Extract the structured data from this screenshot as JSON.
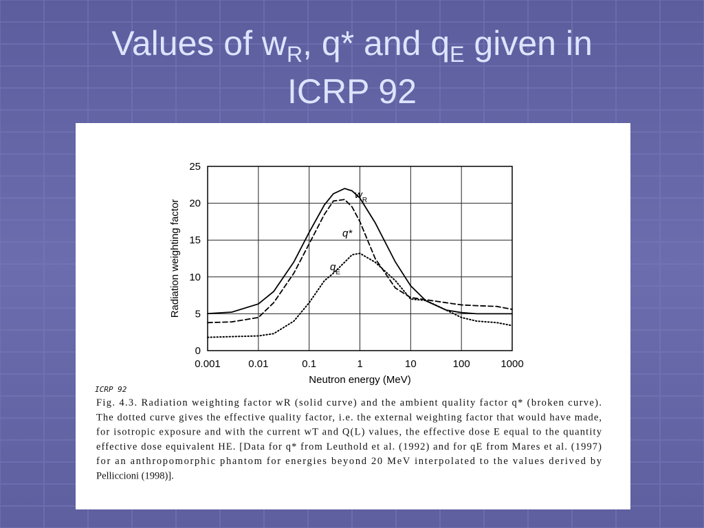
{
  "slide": {
    "title_line1": [
      "Values of w",
      "R",
      ", q* and q",
      "E",
      " given in"
    ],
    "title_line2": "ICRP 92"
  },
  "chart_data": {
    "type": "line",
    "xlabel": "Neutron energy (MeV)",
    "ylabel": "Radiation weighting factor",
    "xscale": "log",
    "grid": true,
    "xlim": [
      0.001,
      1000
    ],
    "xticks": [
      0.001,
      0.01,
      0.1,
      1,
      10,
      100,
      1000
    ],
    "ylim": [
      0,
      25
    ],
    "yticks": [
      0,
      5,
      10,
      15,
      20,
      25
    ],
    "x": [
      0.001,
      0.003,
      0.01,
      0.02,
      0.05,
      0.1,
      0.2,
      0.3,
      0.5,
      0.7,
      1,
      2,
      5,
      10,
      20,
      50,
      100,
      200,
      500,
      1000
    ],
    "series": [
      {
        "name": "w",
        "subscript": "R",
        "color": "#000000",
        "dash": "solid",
        "values": [
          5.03,
          5.22,
          6.33,
          8.02,
          12.02,
          16.05,
          19.79,
          21.29,
          22,
          21.68,
          20.7,
          17.35,
          12.02,
          8.8,
          6.75,
          5.5,
          5.16,
          5.0,
          5.0,
          5.0
        ]
      },
      {
        "name": "q*",
        "color": "#000000",
        "dash": "dashed",
        "values": [
          3.8,
          3.9,
          4.5,
          6.5,
          10.5,
          14.5,
          18.5,
          20.3,
          20.5,
          19.5,
          17.5,
          12.5,
          8.5,
          7.2,
          6.9,
          6.5,
          6.2,
          6.1,
          6.0,
          5.6
        ]
      },
      {
        "name": "q",
        "subscript": "E",
        "color": "#000000",
        "dash": "dotted",
        "values": [
          1.8,
          1.9,
          2.0,
          2.3,
          4.0,
          6.5,
          9.5,
          10.5,
          12.0,
          13.0,
          13.2,
          12.0,
          9.5,
          7.0,
          6.8,
          5.5,
          4.5,
          4.0,
          3.8,
          3.4
        ]
      }
    ],
    "note": "ICRP 92",
    "caption": [
      "Fig. 4.3.  Radiation weighting factor wR (solid curve) and the ambient quality factor q* (broken curve).",
      "The dotted curve gives the effective quality factor, i.e. the external weighting factor that would have made,",
      "for isotropic exposure and with the current wT and Q(L) values, the effective dose E equal to the quantity",
      "effective dose equivalent HE. [Data for q* from Leuthold et al. (1992) and for qE from Mares et al. (1997)",
      "for an anthropomorphic phantom for energies beyond 20 MeV interpolated to the values derived by",
      "Pelliccioni (1998)]."
    ]
  }
}
